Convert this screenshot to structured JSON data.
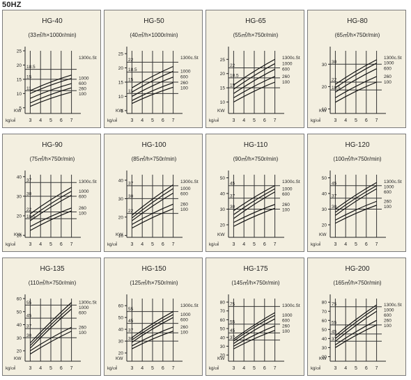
{
  "header": "50HZ",
  "chart_data": [
    {
      "type": "line",
      "title": "HG-40",
      "subtitle": "(33㎥/h×1000r/min)",
      "xlabel": "kg/㎠",
      "ylabel": "KW",
      "xlim": [
        2.5,
        7.5
      ],
      "ylim": [
        3,
        25
      ],
      "x_ticks": [
        3,
        4,
        5,
        6,
        7
      ],
      "y_ticks": [
        5,
        10,
        15,
        20,
        25
      ],
      "y_marks": [
        "11",
        "15",
        "18.5"
      ],
      "series": [
        {
          "name": "1300c.St",
          "x": [
            3,
            7
          ],
          "y": [
            11,
            16.5
          ]
        },
        {
          "name": "1000",
          "x": [
            3,
            7
          ],
          "y": [
            10,
            15.3
          ]
        },
        {
          "name": "600",
          "x": [
            3,
            7
          ],
          "y": [
            8.3,
            13.5
          ]
        },
        {
          "name": "260",
          "x": [
            3,
            7
          ],
          "y": [
            6.7,
            12
          ]
        },
        {
          "name": "100",
          "x": [
            3,
            7
          ],
          "y": [
            5.5,
            10.5
          ]
        }
      ]
    },
    {
      "type": "line",
      "title": "HG-50",
      "subtitle": "(40㎥/h×1000r/min)",
      "xlabel": "kg/㎠",
      "ylabel": "KW",
      "xlim": [
        2.5,
        7.5
      ],
      "ylim": [
        4,
        26
      ],
      "x_ticks": [
        3,
        4,
        5,
        6,
        7
      ],
      "y_ticks": [
        5,
        10,
        15,
        20,
        25
      ],
      "y_marks": [
        "11",
        "15",
        "18.5",
        "22"
      ],
      "series": [
        {
          "name": "1300c.St",
          "x": [
            3,
            7
          ],
          "y": [
            13,
            20.5
          ]
        },
        {
          "name": "1000",
          "x": [
            3,
            7
          ],
          "y": [
            11.5,
            18.8
          ]
        },
        {
          "name": "600",
          "x": [
            3,
            7
          ],
          "y": [
            10,
            16.8
          ]
        },
        {
          "name": "260",
          "x": [
            3,
            7
          ],
          "y": [
            8.5,
            14.8
          ]
        },
        {
          "name": "100",
          "x": [
            3,
            7
          ],
          "y": [
            7.5,
            13.2
          ]
        }
      ]
    },
    {
      "type": "line",
      "title": "HG-65",
      "subtitle": "(55㎥/h×750r/min)",
      "xlabel": "kg/㎠",
      "ylabel": "KW",
      "xlim": [
        2.5,
        7.5
      ],
      "ylim": [
        6,
        28
      ],
      "x_ticks": [
        3,
        4,
        5,
        6,
        7
      ],
      "y_ticks": [
        10,
        15,
        20,
        25
      ],
      "y_marks": [
        "15",
        "18.5",
        "22"
      ],
      "series": [
        {
          "name": "1300c.St",
          "x": [
            3,
            7
          ],
          "y": [
            16,
            25
          ]
        },
        {
          "name": "1000",
          "x": [
            3,
            7
          ],
          "y": [
            14.5,
            23.5
          ]
        },
        {
          "name": "600",
          "x": [
            3,
            7
          ],
          "y": [
            13,
            21.5
          ]
        },
        {
          "name": "260",
          "x": [
            3,
            7
          ],
          "y": [
            11.5,
            19
          ]
        },
        {
          "name": "100",
          "x": [
            3,
            7
          ],
          "y": [
            10,
            17
          ]
        }
      ]
    },
    {
      "type": "line",
      "title": "HG-80",
      "subtitle": "(65㎥/h×750r/min)",
      "xlabel": "kg/㎠",
      "ylabel": "KW",
      "xlim": [
        2.5,
        7.5
      ],
      "ylim": [
        8,
        36
      ],
      "x_ticks": [
        3,
        4,
        5,
        6,
        7
      ],
      "y_ticks": [
        10,
        20,
        30
      ],
      "y_marks": [
        "18.5",
        "22",
        "30"
      ],
      "series": [
        {
          "name": "1300c.St",
          "x": [
            3,
            7
          ],
          "y": [
            21,
            32
          ]
        },
        {
          "name": "1000",
          "x": [
            3,
            7
          ],
          "y": [
            19.5,
            30.5
          ]
        },
        {
          "name": "600",
          "x": [
            3,
            7
          ],
          "y": [
            17.5,
            28
          ]
        },
        {
          "name": "260",
          "x": [
            3,
            7
          ],
          "y": [
            15,
            24.5
          ]
        },
        {
          "name": "100",
          "x": [
            3,
            7
          ],
          "y": [
            13,
            22
          ]
        }
      ]
    },
    {
      "type": "line",
      "title": "HG-90",
      "subtitle": "(75㎥/h×750r/min)",
      "xlabel": "kg/㎠",
      "ylabel": "KW",
      "xlim": [
        2.5,
        7.5
      ],
      "ylim": [
        9,
        41
      ],
      "x_ticks": [
        3,
        4,
        5,
        6,
        7
      ],
      "y_ticks": [
        10,
        20,
        30,
        40
      ],
      "y_marks": [
        "18.5",
        "22",
        "30",
        "37"
      ],
      "series": [
        {
          "name": "1300c.St",
          "x": [
            3,
            7
          ],
          "y": [
            21,
            34.5
          ]
        },
        {
          "name": "1000",
          "x": [
            3,
            7
          ],
          "y": [
            19,
            32.5
          ]
        },
        {
          "name": "600",
          "x": [
            3,
            7
          ],
          "y": [
            17.5,
            30.5
          ]
        },
        {
          "name": "260",
          "x": [
            3,
            7
          ],
          "y": [
            14.5,
            24
          ]
        },
        {
          "name": "100",
          "x": [
            3,
            7
          ],
          "y": [
            12.5,
            22.5
          ]
        }
      ]
    },
    {
      "type": "line",
      "title": "HG-100",
      "subtitle": "(85㎥/h×750r/min)",
      "xlabel": "kg/㎠",
      "ylabel": "KW",
      "xlim": [
        2.5,
        7.5
      ],
      "ylim": [
        9,
        43
      ],
      "x_ticks": [
        3,
        4,
        5,
        6,
        7
      ],
      "y_ticks": [
        10,
        20,
        30,
        40
      ],
      "y_marks": [
        "22",
        "30",
        "37"
      ],
      "series": [
        {
          "name": "1300c.St",
          "x": [
            3,
            7
          ],
          "y": [
            21,
            37.5
          ]
        },
        {
          "name": "1000",
          "x": [
            3,
            7
          ],
          "y": [
            19.5,
            35.5
          ]
        },
        {
          "name": "600",
          "x": [
            3,
            7
          ],
          "y": [
            18,
            33
          ]
        },
        {
          "name": "260",
          "x": [
            3,
            7
          ],
          "y": [
            16,
            27
          ]
        },
        {
          "name": "100",
          "x": [
            3,
            7
          ],
          "y": [
            14,
            24.5
          ]
        }
      ]
    },
    {
      "type": "line",
      "title": "HG-110",
      "subtitle": "(90㎥/h×750r/min)",
      "xlabel": "kg/㎠",
      "ylabel": "KW",
      "xlim": [
        2.5,
        7.5
      ],
      "ylim": [
        12,
        52
      ],
      "x_ticks": [
        3,
        4,
        5,
        6,
        7
      ],
      "y_ticks": [
        20,
        30,
        40,
        50
      ],
      "y_marks": [
        "30",
        "37",
        "45"
      ],
      "series": [
        {
          "name": "1300c.St",
          "x": [
            3,
            7
          ],
          "y": [
            29,
            45
          ]
        },
        {
          "name": "1000",
          "x": [
            3,
            7
          ],
          "y": [
            26.5,
            43
          ]
        },
        {
          "name": "600",
          "x": [
            3,
            7
          ],
          "y": [
            24,
            41
          ]
        },
        {
          "name": "260",
          "x": [
            3,
            7
          ],
          "y": [
            21.5,
            33
          ]
        },
        {
          "name": "100",
          "x": [
            3,
            7
          ],
          "y": [
            19,
            30.5
          ]
        }
      ]
    },
    {
      "type": "line",
      "title": "HG-120",
      "subtitle": "(100㎥/h×750r/min)",
      "xlabel": "kg/㎠",
      "ylabel": "KW",
      "xlim": [
        2.5,
        7.5
      ],
      "ylim": [
        12,
        52
      ],
      "x_ticks": [
        3,
        4,
        5,
        6,
        7
      ],
      "y_ticks": [
        20,
        30,
        40,
        50
      ],
      "y_marks": [
        "30",
        "37",
        "45"
      ],
      "series": [
        {
          "name": "1300c.St",
          "x": [
            3,
            7
          ],
          "y": [
            30,
            47
          ]
        },
        {
          "name": "1000",
          "x": [
            3,
            7
          ],
          "y": [
            28,
            45
          ]
        },
        {
          "name": "600",
          "x": [
            3,
            7
          ],
          "y": [
            26,
            43
          ]
        },
        {
          "name": "260",
          "x": [
            3,
            7
          ],
          "y": [
            23,
            35
          ]
        },
        {
          "name": "100",
          "x": [
            3,
            7
          ],
          "y": [
            21,
            32.5
          ]
        }
      ]
    },
    {
      "type": "line",
      "title": "HG-135",
      "subtitle": "(110㎥/h×750r/min)",
      "xlabel": "kg/㎠",
      "ylabel": "KW",
      "xlim": [
        2.5,
        7.5
      ],
      "ylim": [
        12,
        60
      ],
      "x_ticks": [
        3,
        4,
        5,
        6,
        7
      ],
      "y_ticks": [
        20,
        30,
        40,
        50,
        60
      ],
      "y_marks": [
        "30",
        "37",
        "45",
        "55"
      ],
      "series": [
        {
          "name": "1300c.St",
          "x": [
            3,
            7
          ],
          "y": [
            26,
            57
          ]
        },
        {
          "name": "1000",
          "x": [
            3,
            7
          ],
          "y": [
            24,
            54.5
          ]
        },
        {
          "name": "600",
          "x": [
            3,
            7
          ],
          "y": [
            22,
            52
          ]
        },
        {
          "name": "260",
          "x": [
            3,
            7
          ],
          "y": [
            20,
            38
          ]
        },
        {
          "name": "100",
          "x": [
            3,
            7
          ],
          "y": [
            17.5,
            35
          ]
        }
      ]
    },
    {
      "type": "line",
      "title": "HG-150",
      "subtitle": "(125㎥/h×750r/min)",
      "xlabel": "kg/㎠",
      "ylabel": "KW",
      "xlim": [
        2.5,
        7.5
      ],
      "ylim": [
        13,
        66
      ],
      "x_ticks": [
        3,
        4,
        5,
        6,
        7
      ],
      "y_ticks": [
        20,
        30,
        40,
        50,
        60
      ],
      "y_marks": [
        "30",
        "37",
        "45",
        "55"
      ],
      "series": [
        {
          "name": "1300c.St",
          "x": [
            3,
            7
          ],
          "y": [
            33,
            55
          ]
        },
        {
          "name": "1000",
          "x": [
            3,
            7
          ],
          "y": [
            31,
            52.5
          ]
        },
        {
          "name": "600",
          "x": [
            3,
            7
          ],
          "y": [
            29,
            50
          ]
        },
        {
          "name": "260",
          "x": [
            3,
            7
          ],
          "y": [
            26,
            42
          ]
        },
        {
          "name": "100",
          "x": [
            3,
            7
          ],
          "y": [
            23.5,
            38.5
          ]
        }
      ]
    },
    {
      "type": "line",
      "title": "HG-175",
      "subtitle": "(145㎥/h×750r/min)",
      "xlabel": "kg/㎠",
      "ylabel": "KW",
      "xlim": [
        2.5,
        7.5
      ],
      "ylim": [
        13,
        84
      ],
      "x_ticks": [
        3,
        4,
        5,
        6,
        7
      ],
      "y_ticks": [
        20,
        30,
        40,
        50,
        60,
        70,
        80
      ],
      "y_marks": [
        "37",
        "45",
        "55",
        "75"
      ],
      "series": [
        {
          "name": "1300c.St",
          "x": [
            3,
            7
          ],
          "y": [
            38,
            68
          ]
        },
        {
          "name": "1000",
          "x": [
            3,
            7
          ],
          "y": [
            36,
            65
          ]
        },
        {
          "name": "600",
          "x": [
            3,
            7
          ],
          "y": [
            33,
            61
          ]
        },
        {
          "name": "260",
          "x": [
            3,
            7
          ],
          "y": [
            30,
            53
          ]
        },
        {
          "name": "100",
          "x": [
            3,
            7
          ],
          "y": [
            27,
            48
          ]
        }
      ]
    },
    {
      "type": "line",
      "title": "HG-200",
      "subtitle": "(165㎥/h×750r/min)",
      "xlabel": "kg/㎠",
      "ylabel": "KW",
      "xlim": [
        2.5,
        7.5
      ],
      "ylim": [
        15,
        84
      ],
      "x_ticks": [
        3,
        4,
        5,
        6,
        7
      ],
      "y_ticks": [
        20,
        30,
        40,
        50,
        60,
        70,
        80
      ],
      "y_marks": [
        "37",
        "45",
        "55",
        "75"
      ],
      "series": [
        {
          "name": "1300c.St",
          "x": [
            3,
            7
          ],
          "y": [
            43,
            77
          ]
        },
        {
          "name": "1000",
          "x": [
            3,
            7
          ],
          "y": [
            40,
            74
          ]
        },
        {
          "name": "600",
          "x": [
            3,
            7
          ],
          "y": [
            37,
            70
          ]
        },
        {
          "name": "260",
          "x": [
            3,
            7
          ],
          "y": [
            33,
            60
          ]
        },
        {
          "name": "100",
          "x": [
            3,
            7
          ],
          "y": [
            30,
            55
          ]
        }
      ]
    }
  ]
}
